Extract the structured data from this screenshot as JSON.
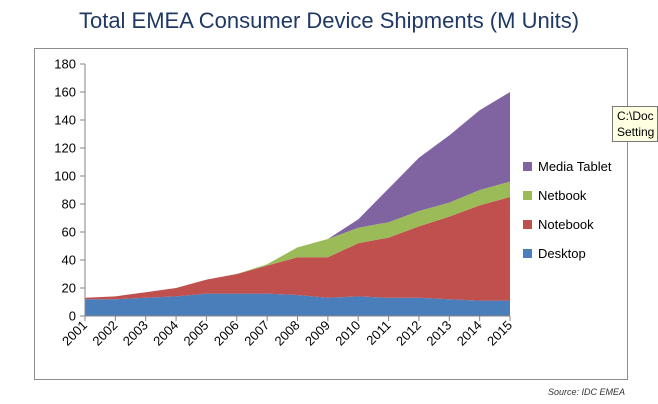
{
  "title": "Total EMEA Consumer Device Shipments (M Units)",
  "source": "Source: IDC EMEA",
  "tooltip": {
    "line1": "C:\\Doc",
    "line2": "Setting"
  },
  "chart_data": {
    "type": "area",
    "stacked": true,
    "title": "Total EMEA Consumer Device Shipments (M Units)",
    "xlabel": "",
    "ylabel": "",
    "categories": [
      "2001",
      "2002",
      "2003",
      "2004",
      "2005",
      "2006",
      "2007",
      "2008",
      "2009",
      "2010",
      "2011",
      "2012",
      "2013",
      "2014",
      "2015"
    ],
    "ylim": [
      0,
      180
    ],
    "yticks": [
      0,
      20,
      40,
      60,
      80,
      100,
      120,
      140,
      160,
      180
    ],
    "grid": false,
    "legend_position": "right",
    "series": [
      {
        "name": "Desktop",
        "color": "#4a7ebb",
        "values": [
          12,
          12,
          13,
          14,
          16,
          16,
          16,
          15,
          13,
          14,
          13,
          13,
          12,
          11,
          11
        ]
      },
      {
        "name": "Notebook",
        "color": "#c0504d",
        "values": [
          1,
          2,
          4,
          6,
          10,
          14,
          20,
          27,
          29,
          38,
          43,
          51,
          59,
          68,
          74
        ]
      },
      {
        "name": "Netbook",
        "color": "#9bbb59",
        "values": [
          0,
          0,
          0,
          0,
          0,
          0,
          1,
          7,
          13,
          11,
          11,
          11,
          10,
          11,
          11
        ]
      },
      {
        "name": "Media Tablet",
        "color": "#8064a2",
        "values": [
          0,
          0,
          0,
          0,
          0,
          0,
          0,
          0,
          0,
          6,
          24,
          38,
          48,
          57,
          64
        ]
      }
    ],
    "legend_order": [
      "Media Tablet",
      "Netbook",
      "Notebook",
      "Desktop"
    ]
  }
}
